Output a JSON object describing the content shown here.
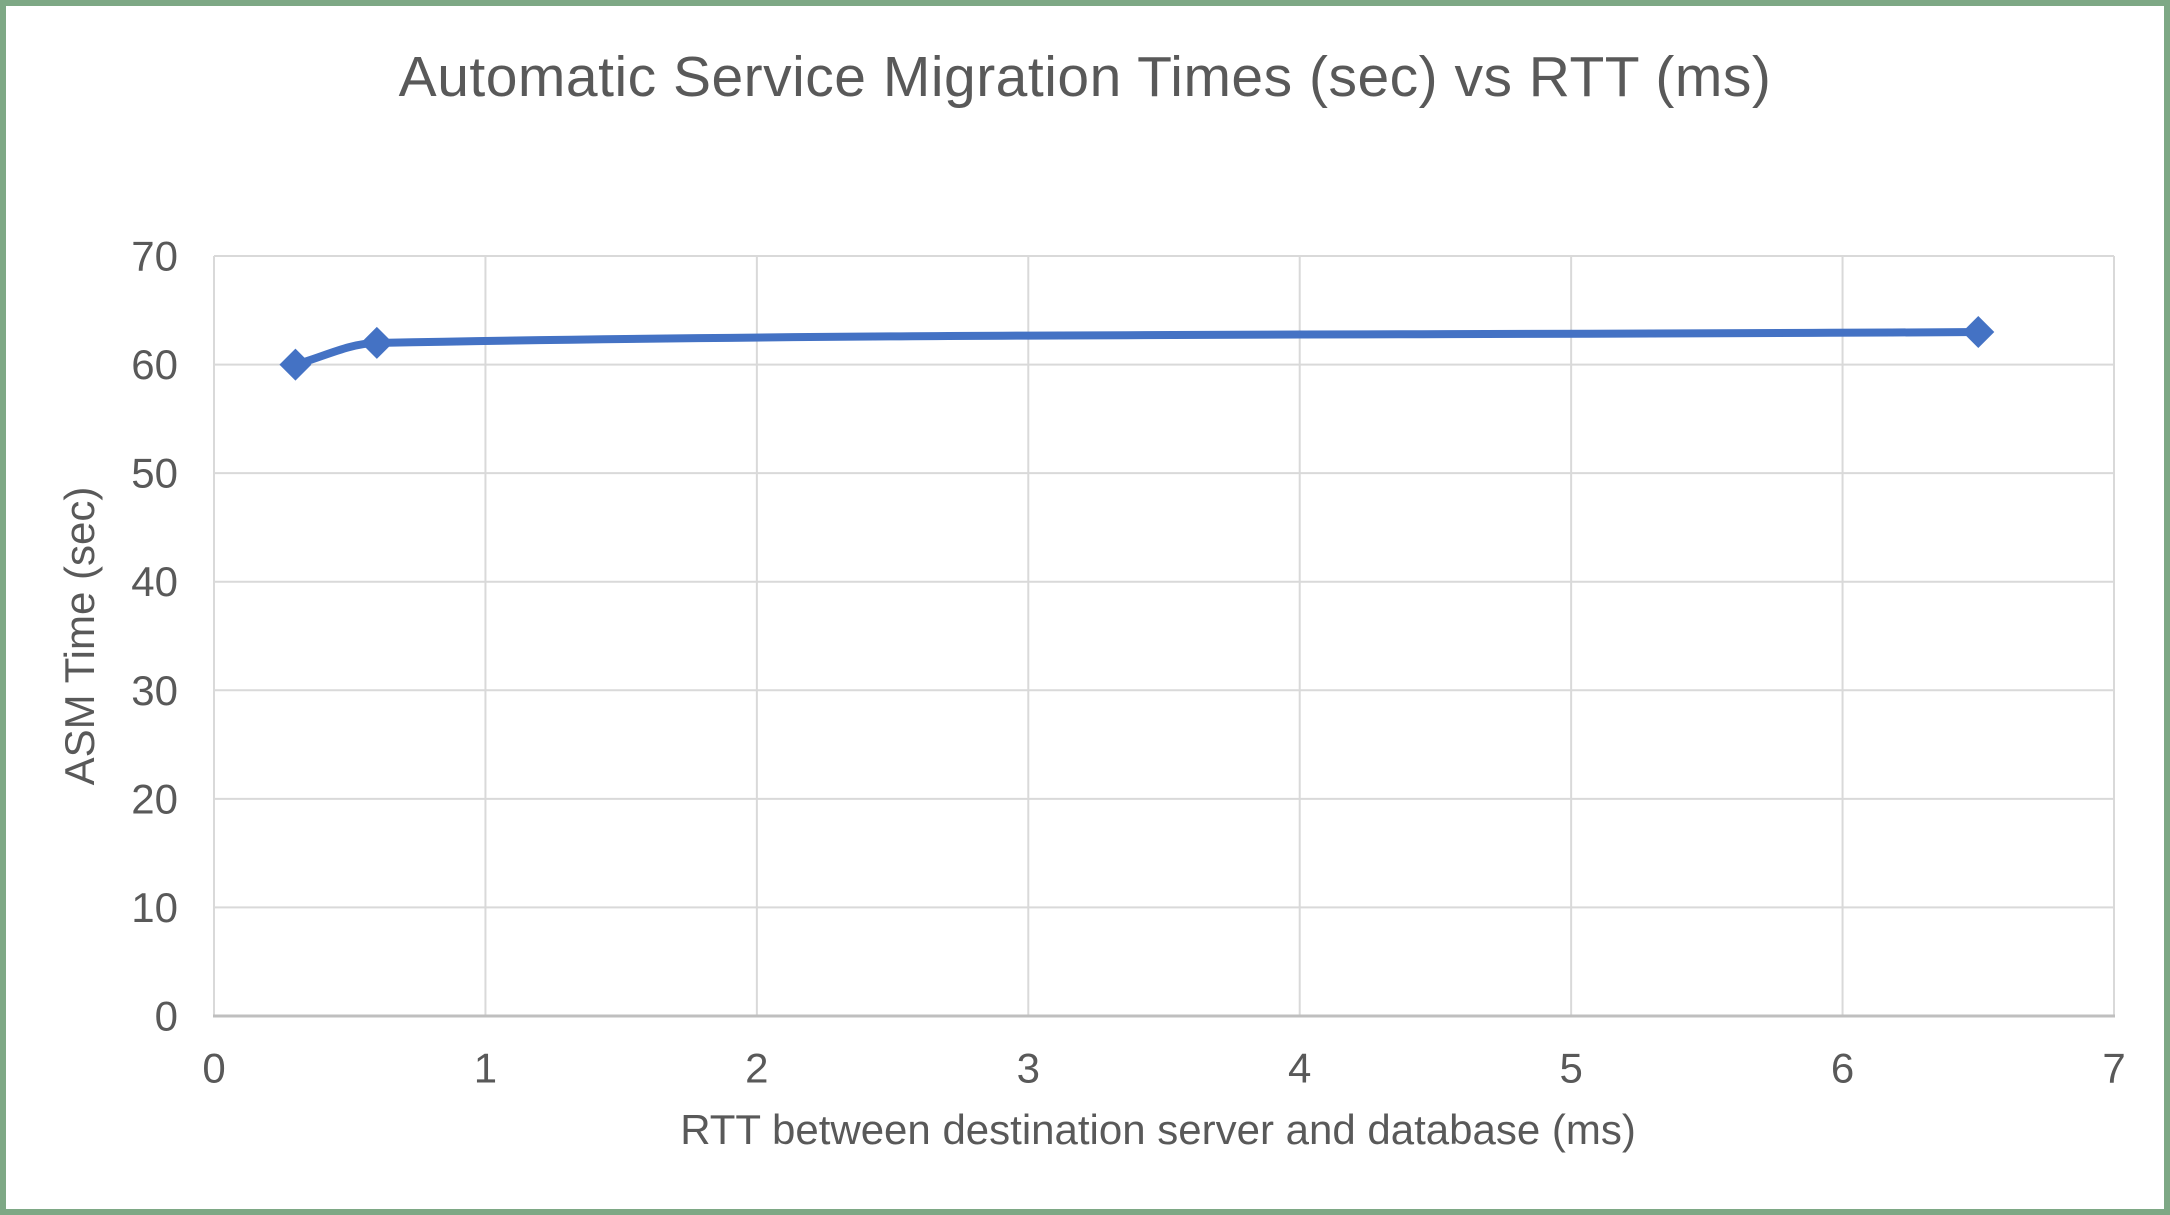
{
  "window": {
    "background": "#FFFFFF",
    "border_color": "#7EA885"
  },
  "chart_data": {
    "type": "line",
    "title": "Automatic Service Migration Times (sec) vs RTT (ms)",
    "xlabel": "RTT between destination server and database (ms)",
    "ylabel": "ASM Time (sec)",
    "series": [
      {
        "name": "ASM Time",
        "x": [
          0.3,
          0.6,
          6.5
        ],
        "y": [
          60,
          62,
          63
        ]
      }
    ],
    "xlim": [
      0,
      7
    ],
    "ylim": [
      0,
      70
    ],
    "xticks": [
      0,
      1,
      2,
      3,
      4,
      5,
      6,
      7
    ],
    "yticks": [
      0,
      10,
      20,
      30,
      40,
      50,
      60,
      70
    ],
    "grid": true,
    "legend_position": "none",
    "smooth_line": true,
    "marker": "diamond",
    "marker_half_size": 16,
    "line_width": 8,
    "colors": {
      "series": "#4472C4",
      "gridline": "#D9D9D9",
      "axis_line": "#BFBFBF",
      "text": "#595959"
    }
  }
}
